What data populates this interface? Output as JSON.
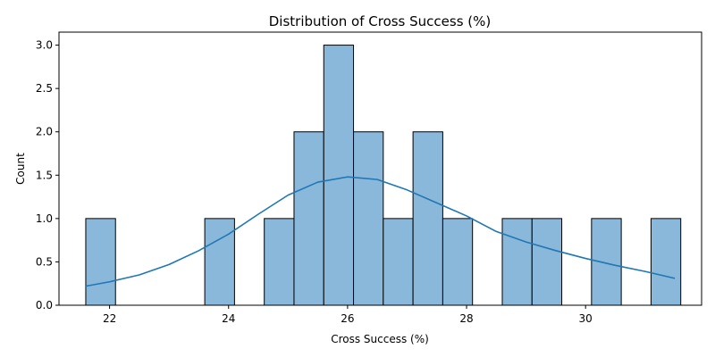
{
  "chart_data": {
    "type": "bar",
    "title": "Distribution of Cross Success (%)",
    "xlabel": "Cross Success (%)",
    "ylabel": "Count",
    "xlim": [
      21.15,
      31.95
    ],
    "ylim": [
      0,
      3.15
    ],
    "x_ticks": [
      22,
      24,
      26,
      28,
      30
    ],
    "y_ticks": [
      0.0,
      0.5,
      1.0,
      1.5,
      2.0,
      2.5,
      3.0
    ],
    "x_tick_labels": [
      "22",
      "24",
      "26",
      "28",
      "30"
    ],
    "y_tick_labels": [
      "0.0",
      "0.5",
      "1.0",
      "1.5",
      "2.0",
      "2.5",
      "3.0"
    ],
    "bins": [
      {
        "start": 21.6,
        "end": 22.1,
        "count": 1
      },
      {
        "start": 22.1,
        "end": 22.6,
        "count": 0
      },
      {
        "start": 22.6,
        "end": 23.1,
        "count": 0
      },
      {
        "start": 23.1,
        "end": 23.6,
        "count": 0
      },
      {
        "start": 23.6,
        "end": 24.1,
        "count": 1
      },
      {
        "start": 24.1,
        "end": 24.6,
        "count": 0
      },
      {
        "start": 24.6,
        "end": 25.1,
        "count": 1
      },
      {
        "start": 25.1,
        "end": 25.6,
        "count": 2
      },
      {
        "start": 25.6,
        "end": 26.1,
        "count": 3
      },
      {
        "start": 26.1,
        "end": 26.6,
        "count": 2
      },
      {
        "start": 26.6,
        "end": 27.1,
        "count": 1
      },
      {
        "start": 27.1,
        "end": 27.6,
        "count": 2
      },
      {
        "start": 27.6,
        "end": 28.1,
        "count": 1
      },
      {
        "start": 28.1,
        "end": 28.6,
        "count": 0
      },
      {
        "start": 28.6,
        "end": 29.1,
        "count": 1
      },
      {
        "start": 29.1,
        "end": 29.6,
        "count": 1
      },
      {
        "start": 29.6,
        "end": 30.1,
        "count": 0
      },
      {
        "start": 30.1,
        "end": 30.6,
        "count": 1
      },
      {
        "start": 30.6,
        "end": 31.1,
        "count": 0
      },
      {
        "start": 31.1,
        "end": 31.6,
        "count": 1
      }
    ],
    "kde": {
      "x": [
        21.6,
        22.0,
        22.5,
        23.0,
        23.5,
        24.0,
        24.5,
        25.0,
        25.5,
        26.0,
        26.5,
        27.0,
        27.5,
        28.0,
        28.5,
        29.0,
        29.5,
        30.0,
        30.5,
        31.0,
        31.5
      ],
      "y": [
        0.22,
        0.27,
        0.35,
        0.47,
        0.63,
        0.82,
        1.05,
        1.27,
        1.42,
        1.48,
        1.45,
        1.33,
        1.18,
        1.03,
        0.85,
        0.73,
        0.63,
        0.54,
        0.46,
        0.39,
        0.31
      ]
    },
    "colors": {
      "bar_fill": "#8ab8da",
      "line": "#1f77b4",
      "edge": "#000000"
    },
    "grid": false
  }
}
